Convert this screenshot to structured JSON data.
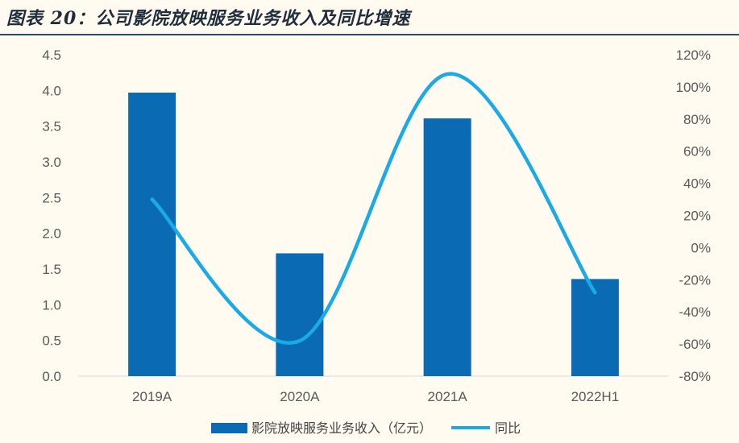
{
  "title": "图表 20：公司影院放映服务业务收入及同比增速",
  "chart_data": {
    "type": "bar+line",
    "categories": [
      "2019A",
      "2020A",
      "2021A",
      "2022H1"
    ],
    "series": [
      {
        "name": "影院放映服务业务收入（亿元）",
        "type": "bar",
        "axis": "left",
        "values": [
          3.97,
          1.72,
          3.61,
          1.36
        ],
        "color": "#0b6ab4"
      },
      {
        "name": "同比",
        "type": "line",
        "axis": "right",
        "values": [
          30,
          -58,
          108,
          -28
        ],
        "unit": "%",
        "color": "#1aaae6"
      }
    ],
    "y_left": {
      "min": 0,
      "max": 4.5,
      "ticks": [
        "0.0",
        "0.5",
        "1.0",
        "1.5",
        "2.0",
        "2.5",
        "3.0",
        "3.5",
        "4.0",
        "4.5"
      ]
    },
    "y_right": {
      "min": -80,
      "max": 120,
      "ticks": [
        "-80%",
        "-60%",
        "-40%",
        "-20%",
        "0%",
        "20%",
        "40%",
        "60%",
        "80%",
        "100%",
        "120%"
      ]
    },
    "legend": {
      "position": "bottom",
      "items": [
        "影院放映服务业务收入（亿元）",
        "同比"
      ]
    }
  }
}
